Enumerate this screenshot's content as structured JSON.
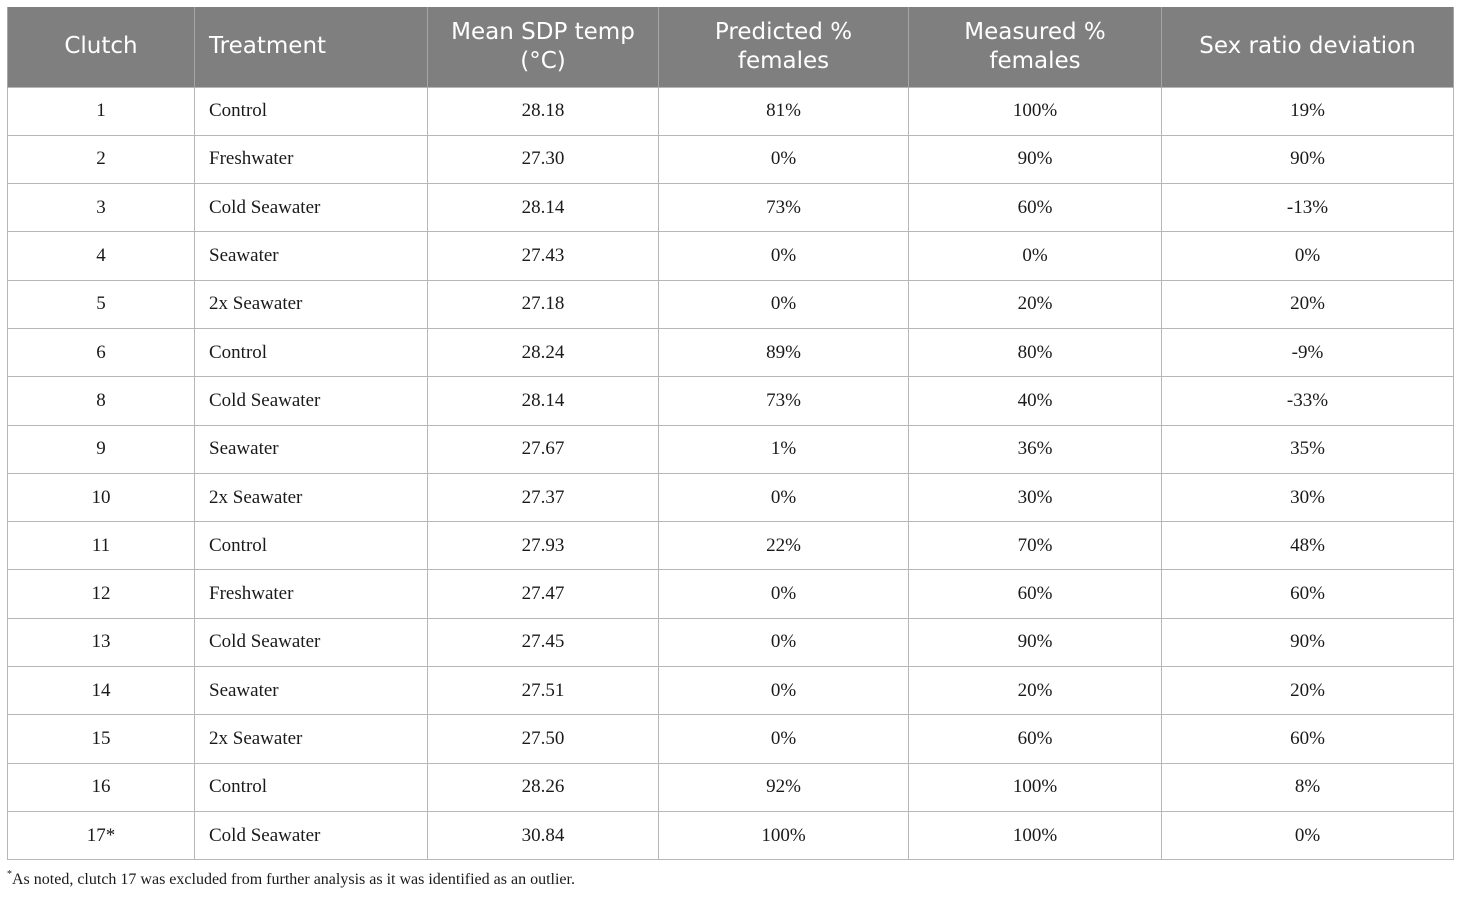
{
  "table": {
    "headers": [
      "Clutch",
      "Treatment",
      "Mean SDP temp (°C)",
      "Predicted % females",
      "Measured % females",
      "Sex ratio deviation"
    ],
    "rows": [
      [
        "1",
        "Control",
        "28.18",
        "81%",
        "100%",
        "19%"
      ],
      [
        "2",
        "Freshwater",
        "27.30",
        "0%",
        "90%",
        "90%"
      ],
      [
        "3",
        "Cold Seawater",
        "28.14",
        "73%",
        "60%",
        "-13%"
      ],
      [
        "4",
        "Seawater",
        "27.43",
        "0%",
        "0%",
        "0%"
      ],
      [
        "5",
        "2x Seawater",
        "27.18",
        "0%",
        "20%",
        "20%"
      ],
      [
        "6",
        "Control",
        "28.24",
        "89%",
        "80%",
        "-9%"
      ],
      [
        "8",
        "Cold Seawater",
        "28.14",
        "73%",
        "40%",
        "-33%"
      ],
      [
        "9",
        "Seawater",
        "27.67",
        "1%",
        "36%",
        "35%"
      ],
      [
        "10",
        "2x Seawater",
        "27.37",
        "0%",
        "30%",
        "30%"
      ],
      [
        "11",
        "Control",
        "27.93",
        "22%",
        "70%",
        "48%"
      ],
      [
        "12",
        "Freshwater",
        "27.47",
        "0%",
        "60%",
        "60%"
      ],
      [
        "13",
        "Cold Seawater",
        "27.45",
        "0%",
        "90%",
        "90%"
      ],
      [
        "14",
        "Seawater",
        "27.51",
        "0%",
        "20%",
        "20%"
      ],
      [
        "15",
        "2x Seawater",
        "27.50",
        "0%",
        "60%",
        "60%"
      ],
      [
        "16",
        "Control",
        "28.26",
        "92%",
        "100%",
        "8%"
      ],
      [
        "17*",
        "Cold Seawater",
        "30.84",
        "100%",
        "100%",
        "0%"
      ]
    ]
  },
  "footnote": {
    "marker": "*",
    "text": "As noted, clutch 17 was excluded from further analysis as it was identified as an outlier."
  },
  "colors": {
    "header_bg": "#7f7f7f",
    "header_text": "#ffffff",
    "grid": "#b7b7b7"
  }
}
